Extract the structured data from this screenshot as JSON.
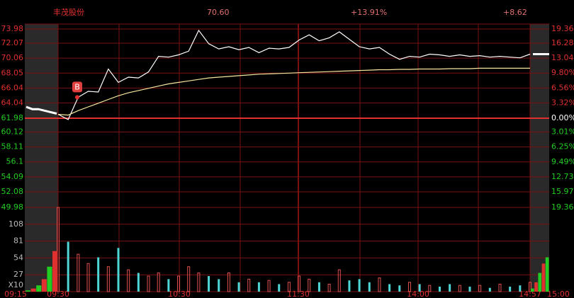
{
  "chart_data": {
    "type": "line",
    "title": "丰茂股份",
    "price_label": "70.60",
    "change_pct_label": "+13.91%",
    "change_label": "+8.62",
    "ylim": [
      49.98,
      73.98
    ],
    "yticks": [
      73.98,
      72.07,
      70.06,
      68.05,
      66.04,
      64.04,
      61.98,
      60.12,
      58.11,
      56.1,
      54.09,
      52.08,
      49.98
    ],
    "y2lim": [
      -19.36,
      19.36
    ],
    "y2ticks": [
      {
        "value": 19.36,
        "label": "19.36%"
      },
      {
        "value": 16.28,
        "label": "16.28%"
      },
      {
        "value": 13.04,
        "label": "13.04%"
      },
      {
        "value": 9.8,
        "label": "9.80%"
      },
      {
        "value": 6.56,
        "label": "6.56%"
      },
      {
        "value": 3.32,
        "label": "3.32%"
      },
      {
        "value": 0,
        "label": "0.00%"
      },
      {
        "value": -3.01,
        "label": "3.01%"
      },
      {
        "value": -6.25,
        "label": "6.25%"
      },
      {
        "value": -9.49,
        "label": "9.49%"
      },
      {
        "value": -12.73,
        "label": "12.73%"
      },
      {
        "value": -15.97,
        "label": "15.97%"
      },
      {
        "value": -19.36,
        "label": "19.36%"
      }
    ],
    "time_labels": [
      "09:15",
      "09:30",
      "10:30",
      "11:30",
      "14:00",
      "14:57",
      "15:00"
    ],
    "series": [
      {
        "color": "#ffffff",
        "values": [
          62.5,
          61.8,
          64.8,
          65.6,
          65.5,
          68.6,
          66.8,
          67.5,
          67.4,
          68.2,
          70.3,
          70.2,
          70.5,
          71.0,
          73.8,
          72.0,
          71.3,
          71.6,
          71.2,
          71.5,
          70.8,
          71.4,
          71.3,
          71.5,
          72.5,
          73.2,
          72.4,
          72.8,
          73.6,
          72.6,
          71.6,
          71.3,
          71.5,
          70.6,
          69.9,
          70.3,
          70.2,
          70.6,
          70.5,
          70.3,
          70.5,
          70.3,
          70.4,
          70.2,
          70.3,
          70.2,
          70.1,
          70.6
        ]
      },
      {
        "color": "#f5e6a0",
        "values": [
          62.5,
          62.4,
          63.0,
          63.5,
          64.0,
          64.5,
          65.0,
          65.4,
          65.7,
          66.0,
          66.3,
          66.6,
          66.8,
          67.0,
          67.2,
          67.4,
          67.5,
          67.6,
          67.7,
          67.8,
          67.9,
          67.95,
          68.0,
          68.05,
          68.1,
          68.15,
          68.2,
          68.25,
          68.3,
          68.35,
          68.4,
          68.45,
          68.5,
          68.5,
          68.55,
          68.55,
          68.6,
          68.6,
          68.6,
          68.65,
          68.65,
          68.65,
          68.7,
          68.7,
          68.7,
          68.7,
          68.7,
          68.7
        ]
      }
    ],
    "pre_open": {
      "color": "#ffffff",
      "values": [
        63.5,
        63.2,
        63.2,
        63.0,
        62.8,
        62.6
      ]
    },
    "post_close": {
      "color": "#ffffff",
      "values": [
        70.6,
        70.6
      ]
    },
    "annotation": {
      "text": "B",
      "value": 64.8
    },
    "volume": {
      "ylim": [
        0,
        135
      ],
      "yticks": [
        27,
        54,
        81,
        108
      ],
      "unit_label": "X10",
      "values": [
        135,
        80,
        60,
        45,
        55,
        40,
        70,
        35,
        30,
        25,
        30,
        20,
        25,
        40,
        30,
        25,
        20,
        30,
        15,
        20,
        15,
        18,
        12,
        15,
        25,
        20,
        15,
        12,
        35,
        18,
        20,
        15,
        22,
        12,
        10,
        15,
        12,
        10,
        8,
        12,
        10,
        8,
        10,
        6,
        12,
        8,
        10,
        15
      ],
      "pre_open": [
        2,
        5,
        10,
        20,
        40,
        65
      ],
      "post_close": [
        5,
        15,
        30,
        45,
        55
      ]
    }
  }
}
